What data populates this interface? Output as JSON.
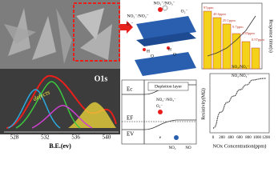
{
  "xps_panel": {
    "peak_label": "O1s",
    "annotation": "defects",
    "x_ticks": [
      "528",
      "532",
      "536",
      "540"
    ],
    "x_label": "B.E.(ev)"
  },
  "mechanism_panel": {
    "gas_top": "NO₂⁻/NO₃⁻",
    "oxygen_top": "O₂⁻",
    "oxygen_left": "O₂⁻",
    "gas_left": "NO₂⁻/NO₃⁻",
    "hydroxyl": [
      "H",
      "O",
      "H",
      "O"
    ],
    "band": {
      "conduction": "Ec",
      "depletion": "Depletion layer",
      "fermi": "EF",
      "valence": "EV",
      "adsorbed": "NO₂⁻/NO₃⁻",
      "oxygen": "O₂⁻",
      "gas": "NO₂",
      "free_gas": "NO",
      "defect": "e"
    }
  },
  "response_panel": {
    "bar_labels": [
      "97ppm",
      "48.6ppm",
      "29.1ppm",
      "9.7ppm",
      "4.85ppm",
      "0.97ppm"
    ],
    "y_label": "Response time(s)",
    "inset_label": "NO₂/NO₃⁻"
  },
  "resistivity_panel": {
    "y_label": "Resistivity(MΩ)",
    "x_label": "NOx Concentration(ppm)",
    "x_ticks": [
      "0",
      "200",
      "400",
      "600",
      "800",
      "1000",
      "1200"
    ],
    "inset_label": "NO₂/NO₃⁻"
  }
}
